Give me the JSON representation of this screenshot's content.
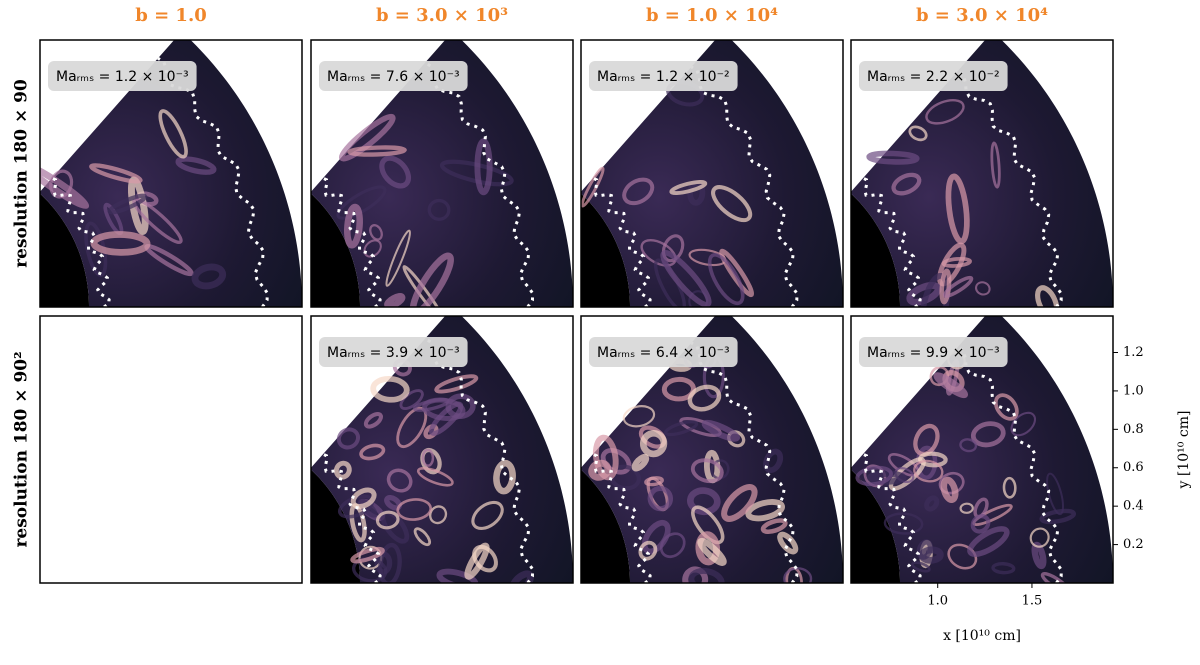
{
  "columns": [
    "b = 1.0",
    "b = 3.0 × 10³",
    "b = 1.0 × 10⁴",
    "b = 3.0 × 10⁴"
  ],
  "rows": [
    {
      "label": "resolution 180 × 90",
      "annotations": [
        "Maᵣₘₛ = 1.2 × 10⁻³",
        "Maᵣₘₛ = 7.6 × 10⁻³",
        "Maᵣₘₛ = 1.2 × 10⁻²",
        "Maᵣₘₛ = 2.2 × 10⁻²"
      ]
    },
    {
      "label": "resolution 180 × 90²",
      "annotations": [
        null,
        "Maᵣₘₛ = 3.9 × 10⁻³",
        "Maᵣₘₛ = 6.4 × 10⁻³",
        "Maᵣₘₛ = 9.9 × 10⁻³"
      ]
    }
  ],
  "axes": {
    "xlabel": "x [10¹⁰ cm]",
    "ylabel": "y [10¹⁰ cm]",
    "xlim": [
      0.54,
      1.93
    ],
    "ylim": [
      0,
      1.39
    ],
    "xticks": [
      {
        "value": 1,
        "label": "1.0"
      },
      1.5
    ],
    "yticks": [
      0.2,
      0.4,
      0.6,
      0.8,
      {
        "value": 1,
        "label": "1.0"
      },
      1.2
    ]
  }
}
